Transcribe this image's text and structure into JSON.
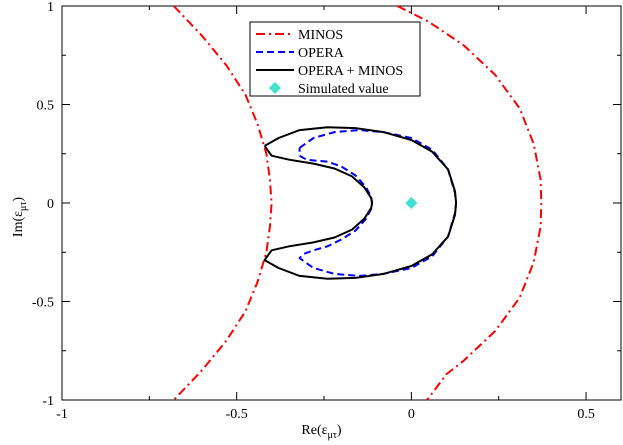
{
  "chart_data": {
    "type": "line",
    "title": "",
    "xlabel": {
      "main": "Re(ε",
      "sub": "μτ",
      "close": ")"
    },
    "ylabel": {
      "main": "Im(ε",
      "sub": "μτ",
      "close": ")"
    },
    "xlim": [
      -1,
      0.6
    ],
    "ylim": [
      -1,
      1
    ],
    "grid": false,
    "legend_position": "top-center",
    "x_ticks": [
      {
        "value": -1,
        "label": "-1"
      },
      {
        "value": -0.5,
        "label": "-0.5"
      },
      {
        "value": 0,
        "label": "0"
      },
      {
        "value": 0.5,
        "label": "0.5"
      }
    ],
    "y_ticks": [
      {
        "value": -1,
        "label": "-1"
      },
      {
        "value": -0.5,
        "label": "-0.5"
      },
      {
        "value": 0,
        "label": "0"
      },
      {
        "value": 0.5,
        "label": "0.5"
      },
      {
        "value": 1,
        "label": "1"
      }
    ],
    "series": [
      {
        "name": "MINOS",
        "color": "#ff0000",
        "style": "dash-dot",
        "segments": [
          [
            [
              -0.68,
              1.0
            ],
            [
              -0.6,
              0.85
            ],
            [
              -0.53,
              0.7
            ],
            [
              -0.475,
              0.55
            ],
            [
              -0.44,
              0.4
            ],
            [
              -0.415,
              0.25
            ],
            [
              -0.405,
              0.12
            ],
            [
              -0.4,
              0.0
            ],
            [
              -0.405,
              -0.12
            ],
            [
              -0.415,
              -0.25
            ],
            [
              -0.44,
              -0.4
            ],
            [
              -0.475,
              -0.55
            ],
            [
              -0.53,
              -0.7
            ],
            [
              -0.6,
              -0.85
            ],
            [
              -0.68,
              -1.0
            ]
          ],
          [
            [
              -0.04,
              1.0
            ],
            [
              0.05,
              0.92
            ],
            [
              0.15,
              0.8
            ],
            [
              0.24,
              0.65
            ],
            [
              0.31,
              0.48
            ],
            [
              0.35,
              0.3
            ],
            [
              0.37,
              0.12
            ],
            [
              0.372,
              0.0
            ],
            [
              0.37,
              -0.12
            ],
            [
              0.35,
              -0.3
            ],
            [
              0.31,
              -0.48
            ],
            [
              0.24,
              -0.65
            ],
            [
              0.15,
              -0.8
            ],
            [
              0.1,
              -0.87
            ],
            [
              0.045,
              -1.0
            ]
          ]
        ]
      },
      {
        "name": "OPERA",
        "color": "#0000ff",
        "style": "dashed",
        "points": [
          [
            -0.32,
            0.28
          ],
          [
            -0.28,
            0.33
          ],
          [
            -0.22,
            0.36
          ],
          [
            -0.15,
            0.37
          ],
          [
            -0.08,
            0.36
          ],
          [
            0.0,
            0.33
          ],
          [
            0.06,
            0.27
          ],
          [
            0.105,
            0.17
          ],
          [
            0.125,
            0.05
          ],
          [
            0.128,
            0.0
          ],
          [
            0.125,
            -0.05
          ],
          [
            0.105,
            -0.17
          ],
          [
            0.06,
            -0.27
          ],
          [
            0.0,
            -0.33
          ],
          [
            -0.08,
            -0.36
          ],
          [
            -0.15,
            -0.37
          ],
          [
            -0.22,
            -0.36
          ],
          [
            -0.28,
            -0.33
          ],
          [
            -0.32,
            -0.28
          ],
          [
            -0.31,
            -0.26
          ],
          [
            -0.28,
            -0.24
          ],
          [
            -0.24,
            -0.22
          ],
          [
            -0.2,
            -0.185
          ],
          [
            -0.16,
            -0.14
          ],
          [
            -0.13,
            -0.08
          ],
          [
            -0.115,
            -0.03
          ],
          [
            -0.113,
            0.0
          ],
          [
            -0.115,
            0.03
          ],
          [
            -0.13,
            0.08
          ],
          [
            -0.16,
            0.14
          ],
          [
            -0.2,
            0.185
          ],
          [
            -0.24,
            0.21
          ],
          [
            -0.275,
            0.215
          ],
          [
            -0.3,
            0.22
          ],
          [
            -0.32,
            0.24
          ],
          [
            -0.32,
            0.28
          ]
        ]
      },
      {
        "name": "OPERA + MINOS",
        "color": "#000000",
        "style": "solid",
        "points": [
          [
            -0.42,
            0.29
          ],
          [
            -0.38,
            0.33
          ],
          [
            -0.32,
            0.37
          ],
          [
            -0.24,
            0.385
          ],
          [
            -0.16,
            0.38
          ],
          [
            -0.08,
            0.36
          ],
          [
            0.0,
            0.32
          ],
          [
            0.06,
            0.26
          ],
          [
            0.105,
            0.17
          ],
          [
            0.125,
            0.06
          ],
          [
            0.128,
            0.0
          ],
          [
            0.125,
            -0.06
          ],
          [
            0.105,
            -0.17
          ],
          [
            0.06,
            -0.26
          ],
          [
            0.0,
            -0.32
          ],
          [
            -0.08,
            -0.36
          ],
          [
            -0.16,
            -0.38
          ],
          [
            -0.24,
            -0.385
          ],
          [
            -0.32,
            -0.37
          ],
          [
            -0.38,
            -0.33
          ],
          [
            -0.42,
            -0.29
          ],
          [
            -0.4,
            -0.24
          ],
          [
            -0.35,
            -0.22
          ],
          [
            -0.28,
            -0.2
          ],
          [
            -0.22,
            -0.175
          ],
          [
            -0.17,
            -0.135
          ],
          [
            -0.135,
            -0.08
          ],
          [
            -0.115,
            -0.025
          ],
          [
            -0.112,
            0.0
          ],
          [
            -0.115,
            0.025
          ],
          [
            -0.135,
            0.08
          ],
          [
            -0.17,
            0.135
          ],
          [
            -0.22,
            0.175
          ],
          [
            -0.28,
            0.2
          ],
          [
            -0.35,
            0.22
          ],
          [
            -0.4,
            0.24
          ],
          [
            -0.42,
            0.29
          ]
        ]
      },
      {
        "name": "Simulated value",
        "color": "#40e0d0",
        "style": "marker-diamond",
        "points": [
          [
            0.0,
            0.0
          ]
        ]
      }
    ]
  }
}
